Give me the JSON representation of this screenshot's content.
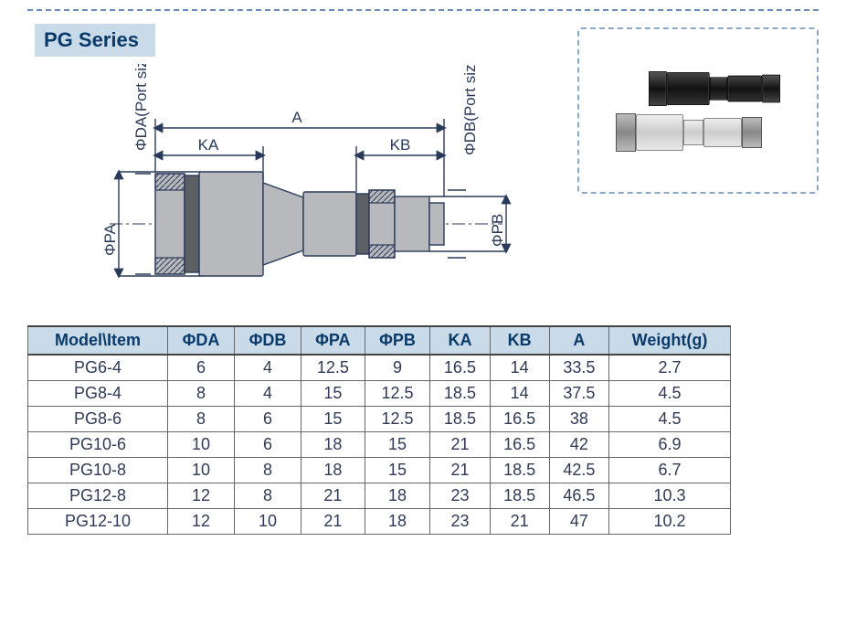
{
  "title": "PG Series",
  "diagram": {
    "labels": {
      "A": "A",
      "KA": "KA",
      "KB": "KB",
      "DA": "ΦDA(Port sizeI)",
      "DB": "ΦDB(Port sizeII)",
      "PA": "ΦPA",
      "PB": "ΦPB"
    },
    "colors": {
      "body": "#b7b9bc",
      "ring": "#5d6063",
      "line": "#2a3a5a",
      "title_bg": "#c9dbe8",
      "title_fg": "#0a3a6a",
      "dash": "#6a8db8"
    }
  },
  "table": {
    "headers": [
      "Model\\Item",
      "ΦDA",
      "ΦDB",
      "ΦPA",
      "ΦPB",
      "KA",
      "KB",
      "A",
      "Weight(g)"
    ],
    "rows": [
      [
        "PG6-4",
        "6",
        "4",
        "12.5",
        "9",
        "16.5",
        "14",
        "33.5",
        "2.7"
      ],
      [
        "PG8-4",
        "8",
        "4",
        "15",
        "12.5",
        "18.5",
        "14",
        "37.5",
        "4.5"
      ],
      [
        "PG8-6",
        "8",
        "6",
        "15",
        "12.5",
        "18.5",
        "16.5",
        "38",
        "4.5"
      ],
      [
        "PG10-6",
        "10",
        "6",
        "18",
        "15",
        "21",
        "16.5",
        "42",
        "6.9"
      ],
      [
        "PG10-8",
        "10",
        "8",
        "18",
        "15",
        "21",
        "18.5",
        "42.5",
        "6.7"
      ],
      [
        "PG12-8",
        "12",
        "8",
        "21",
        "18",
        "23",
        "18.5",
        "46.5",
        "10.3"
      ],
      [
        "PG12-10",
        "12",
        "10",
        "21",
        "18",
        "23",
        "21",
        "47",
        "10.2"
      ]
    ],
    "header_bg": "#c9dbe8",
    "header_fg": "#0a3a6a",
    "cell_fg": "#303a56",
    "border": "#666666",
    "fontsize_header": 18,
    "fontsize_cell": 18
  }
}
